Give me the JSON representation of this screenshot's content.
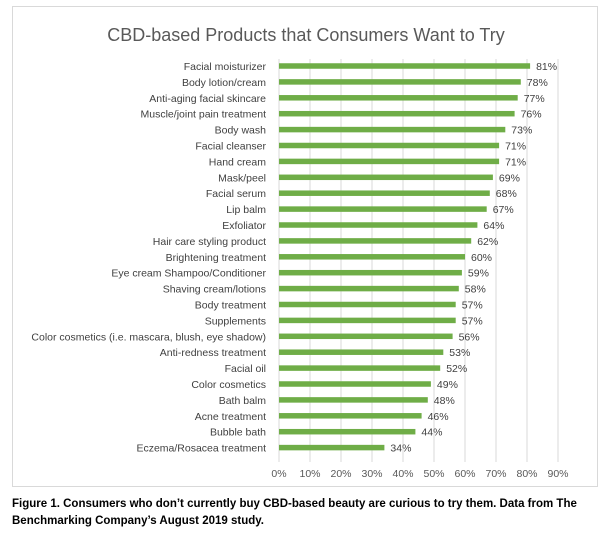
{
  "chart_data": {
    "type": "bar",
    "orientation": "horizontal",
    "title": "CBD-based Products that Consumers Want to Try",
    "categories": [
      "Facial moisturizer",
      "Body lotion/cream",
      "Anti-aging facial skincare",
      "Muscle/joint pain treatment",
      "Body wash",
      "Facial cleanser",
      "Hand cream",
      "Mask/peel",
      "Facial serum",
      "Lip balm",
      "Exfoliator",
      "Hair care styling product",
      "Brightening treatment",
      "Eye cream Shampoo/Conditioner",
      "Shaving cream/lotions",
      "Body treatment",
      "Supplements",
      "Color cosmetics (i.e. mascara, blush, eye shadow)",
      "Anti-redness treatment",
      "Facial oil",
      "Color cosmetics",
      "Bath balm",
      "Acne treatment",
      "Bubble bath",
      "Eczema/Rosacea treatment"
    ],
    "values": [
      81,
      78,
      77,
      76,
      73,
      71,
      71,
      69,
      68,
      67,
      64,
      62,
      60,
      59,
      58,
      57,
      57,
      56,
      53,
      52,
      49,
      48,
      46,
      44,
      34
    ],
    "value_labels": [
      "81%",
      "78%",
      "77%",
      "76%",
      "73%",
      "71%",
      "71%",
      "69%",
      "68%",
      "67%",
      "64%",
      "62%",
      "60%",
      "59%",
      "58%",
      "57%",
      "57%",
      "56%",
      "53%",
      "52%",
      "49%",
      "48%",
      "46%",
      "44%",
      "34%"
    ],
    "xlim": [
      0,
      90
    ],
    "xticks": [
      "0%",
      "10%",
      "20%",
      "30%",
      "40%",
      "50%",
      "60%",
      "70%",
      "80%",
      "90%"
    ],
    "grid": "vertical",
    "bar_color": "#6fad47"
  },
  "caption": "Figure 1. Consumers who don’t currently buy CBD-based beauty are curious to try them. Data from The Benchmarking Company’s August 2019 study."
}
